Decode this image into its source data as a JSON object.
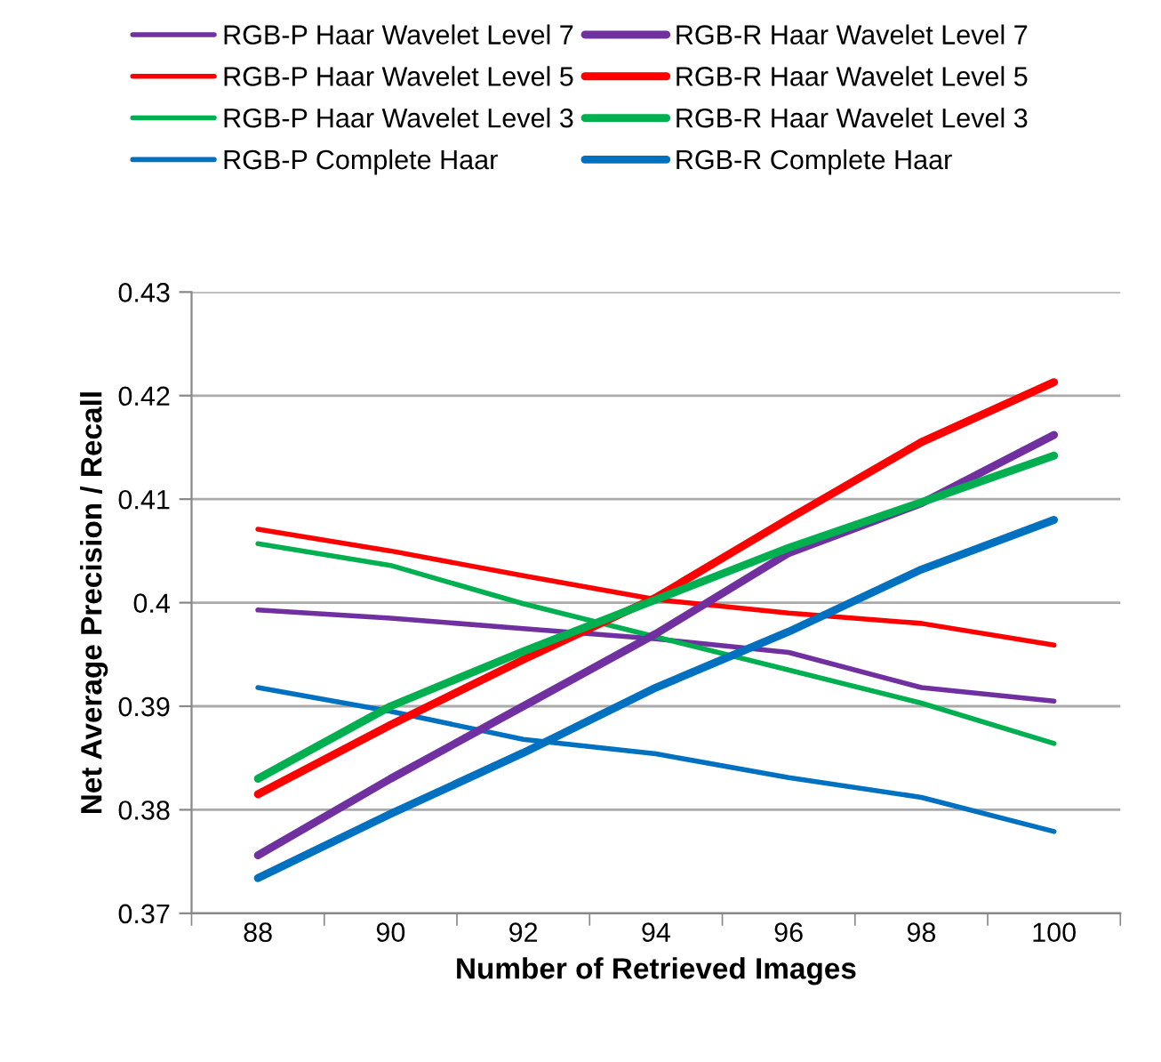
{
  "chart_data": {
    "type": "line",
    "xlabel": "Number of Retrieved Images",
    "ylabel": "Net Average Precision / Recall",
    "categories": [
      "88",
      "90",
      "92",
      "94",
      "96",
      "98",
      "100"
    ],
    "ylim": [
      0.37,
      0.43
    ],
    "yticks": [
      0.37,
      0.38,
      0.39,
      0.4,
      0.41,
      0.42,
      0.43
    ],
    "grid": "y",
    "legend": "top",
    "marker": "none",
    "line_style": "solid",
    "series": [
      {
        "name": "RGB-P Haar Wavelet Level 7",
        "color": "#7030a0",
        "values": [
          0.3993,
          0.3985,
          0.3975,
          0.3965,
          0.3952,
          0.3918,
          0.3905
        ]
      },
      {
        "name": "RGB-P Haar Wavelet Level 5",
        "color": "#ff0000",
        "values": [
          0.4071,
          0.405,
          0.4026,
          0.4003,
          0.399,
          0.398,
          0.3959
        ]
      },
      {
        "name": "RGB-P Haar Wavelet Level 3",
        "color": "#00b050",
        "values": [
          0.4057,
          0.4036,
          0.3999,
          0.3967,
          0.3935,
          0.3903,
          0.3864
        ]
      },
      {
        "name": "RGB-P Complete Haar",
        "color": "#0070c0",
        "values": [
          0.3918,
          0.3895,
          0.3868,
          0.3854,
          0.3831,
          0.3812,
          0.3779
        ]
      },
      {
        "name": "RGB-R Haar Wavelet Level 7",
        "color": "#7030a0",
        "values": [
          0.3756,
          0.383,
          0.39,
          0.397,
          0.4048,
          0.4096,
          0.4162
        ]
      },
      {
        "name": "RGB-R Haar Wavelet Level 5",
        "color": "#ff0000",
        "values": [
          0.3815,
          0.3882,
          0.3945,
          0.4005,
          0.4081,
          0.4155,
          0.4213
        ]
      },
      {
        "name": "RGB-R Haar Wavelet Level 3",
        "color": "#00b050",
        "values": [
          0.383,
          0.39,
          0.3953,
          0.4003,
          0.4053,
          0.4097,
          0.4142
        ]
      },
      {
        "name": "RGB-R Complete Haar",
        "color": "#0070c0",
        "values": [
          0.3734,
          0.3796,
          0.3855,
          0.3918,
          0.3972,
          0.4032,
          0.408
        ]
      }
    ]
  }
}
